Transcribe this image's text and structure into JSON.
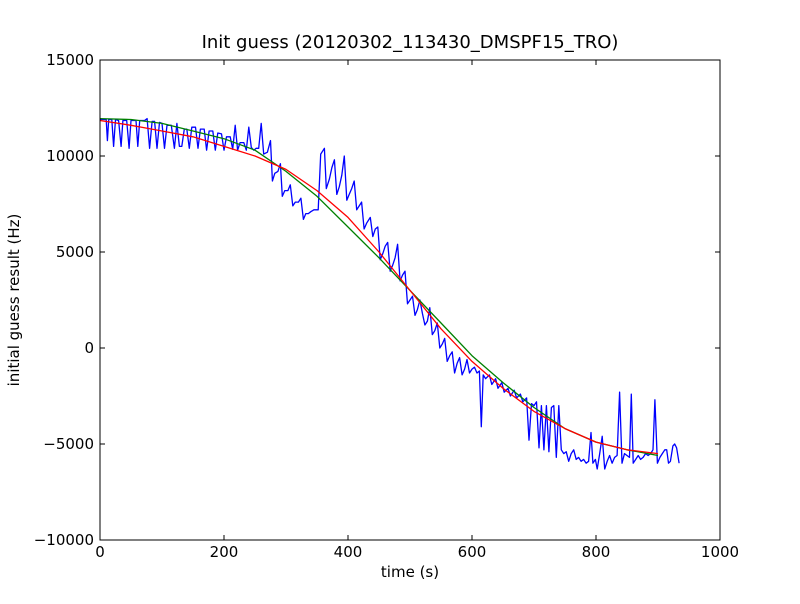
{
  "chart_data": {
    "type": "line",
    "title": "Init guess (20120302_113430_DMSPF15_TRO)",
    "xlabel": "time (s)",
    "ylabel": "initial guess result (Hz)",
    "xlim": [
      0,
      1000
    ],
    "ylim": [
      -10000,
      15000
    ],
    "xticks": [
      0,
      200,
      400,
      600,
      800,
      1000
    ],
    "xtick_labels": [
      "0",
      "200",
      "400",
      "600",
      "800",
      "1000"
    ],
    "yticks": [
      -10000,
      -5000,
      0,
      5000,
      10000,
      15000
    ],
    "ytick_labels": [
      "−10000",
      "−5000",
      "0",
      "5000",
      "10000",
      "15000"
    ],
    "grid": false,
    "legend": "none",
    "series": [
      {
        "color": "#0000ff",
        "points": [
          [
            0,
            11900
          ],
          [
            7,
            11900
          ],
          [
            10,
            11900
          ],
          [
            12,
            10800
          ],
          [
            14,
            11900
          ],
          [
            19,
            11900
          ],
          [
            22,
            10500
          ],
          [
            25,
            11900
          ],
          [
            30,
            11850
          ],
          [
            34,
            10500
          ],
          [
            37,
            11850
          ],
          [
            43,
            11850
          ],
          [
            47,
            10400
          ],
          [
            50,
            11850
          ],
          [
            58,
            11850
          ],
          [
            61,
            10500
          ],
          [
            64,
            11850
          ],
          [
            72,
            11850
          ],
          [
            76,
            11950
          ],
          [
            80,
            10400
          ],
          [
            84,
            11800
          ],
          [
            88,
            11800
          ],
          [
            92,
            10400
          ],
          [
            96,
            11750
          ],
          [
            100,
            11700
          ],
          [
            104,
            10400
          ],
          [
            108,
            11600
          ],
          [
            115,
            11600
          ],
          [
            120,
            10400
          ],
          [
            124,
            11700
          ],
          [
            128,
            10500
          ],
          [
            132,
            10500
          ],
          [
            136,
            11400
          ],
          [
            140,
            11400
          ],
          [
            144,
            10400
          ],
          [
            148,
            11500
          ],
          [
            154,
            11500
          ],
          [
            158,
            10400
          ],
          [
            162,
            11400
          ],
          [
            168,
            11400
          ],
          [
            172,
            10300
          ],
          [
            176,
            11300
          ],
          [
            182,
            11300
          ],
          [
            186,
            10300
          ],
          [
            190,
            11200
          ],
          [
            196,
            11150
          ],
          [
            200,
            10300
          ],
          [
            204,
            11000
          ],
          [
            210,
            11000
          ],
          [
            214,
            10350
          ],
          [
            218,
            11600
          ],
          [
            222,
            10300
          ],
          [
            226,
            10700
          ],
          [
            232,
            10700
          ],
          [
            236,
            10300
          ],
          [
            240,
            11500
          ],
          [
            244,
            10450
          ],
          [
            248,
            10300
          ],
          [
            252,
            10400
          ],
          [
            256,
            10400
          ],
          [
            260,
            11700
          ],
          [
            264,
            10100
          ],
          [
            270,
            10200
          ],
          [
            275,
            10800
          ],
          [
            278,
            8700
          ],
          [
            282,
            9100
          ],
          [
            287,
            9200
          ],
          [
            291,
            9600
          ],
          [
            294,
            7900
          ],
          [
            298,
            8200
          ],
          [
            303,
            8200
          ],
          [
            307,
            8500
          ],
          [
            311,
            7400
          ],
          [
            315,
            7600
          ],
          [
            320,
            7600
          ],
          [
            324,
            7800
          ],
          [
            328,
            6700
          ],
          [
            332,
            7000
          ],
          [
            336,
            7000
          ],
          [
            340,
            7100
          ],
          [
            345,
            7200
          ],
          [
            352,
            7200
          ],
          [
            356,
            10100
          ],
          [
            362,
            10400
          ],
          [
            365,
            8300
          ],
          [
            370,
            8800
          ],
          [
            374,
            9400
          ],
          [
            378,
            9800
          ],
          [
            382,
            8000
          ],
          [
            386,
            8400
          ],
          [
            390,
            9000
          ],
          [
            394,
            10000
          ],
          [
            398,
            7700
          ],
          [
            402,
            8000
          ],
          [
            406,
            8300
          ],
          [
            410,
            8700
          ],
          [
            414,
            7200
          ],
          [
            418,
            7400
          ],
          [
            422,
            7600
          ],
          [
            426,
            6200
          ],
          [
            430,
            6500
          ],
          [
            436,
            6800
          ],
          [
            440,
            5800
          ],
          [
            444,
            6200
          ],
          [
            448,
            6300
          ],
          [
            452,
            4600
          ],
          [
            456,
            4900
          ],
          [
            460,
            5300
          ],
          [
            464,
            5500
          ],
          [
            468,
            4000
          ],
          [
            472,
            4300
          ],
          [
            476,
            4700
          ],
          [
            480,
            5400
          ],
          [
            484,
            3500
          ],
          [
            488,
            3800
          ],
          [
            492,
            4000
          ],
          [
            496,
            2300
          ],
          [
            500,
            2500
          ],
          [
            504,
            2700
          ],
          [
            508,
            1700
          ],
          [
            512,
            2000
          ],
          [
            516,
            2500
          ],
          [
            520,
            1800
          ],
          [
            524,
            1200
          ],
          [
            528,
            1400
          ],
          [
            532,
            2100
          ],
          [
            536,
            700
          ],
          [
            540,
            900
          ],
          [
            544,
            1300
          ],
          [
            548,
            0
          ],
          [
            552,
            200
          ],
          [
            556,
            500
          ],
          [
            560,
            -700
          ],
          [
            564,
            -400
          ],
          [
            568,
            -200
          ],
          [
            572,
            -1300
          ],
          [
            576,
            -800
          ],
          [
            580,
            -500
          ],
          [
            584,
            -1400
          ],
          [
            588,
            -1100
          ],
          [
            592,
            -600
          ],
          [
            596,
            -1300
          ],
          [
            600,
            -1100
          ],
          [
            604,
            -1000
          ],
          [
            608,
            -1300
          ],
          [
            612,
            -1200
          ],
          [
            615,
            -4100
          ],
          [
            618,
            -1400
          ],
          [
            622,
            -1600
          ],
          [
            628,
            -1400
          ],
          [
            632,
            -1900
          ],
          [
            638,
            -1600
          ],
          [
            642,
            -2100
          ],
          [
            648,
            -1800
          ],
          [
            652,
            -2300
          ],
          [
            658,
            -2100
          ],
          [
            662,
            -2500
          ],
          [
            668,
            -2200
          ],
          [
            672,
            -2600
          ],
          [
            678,
            -2400
          ],
          [
            682,
            -2800
          ],
          [
            688,
            -2600
          ],
          [
            692,
            -4800
          ],
          [
            696,
            -2900
          ],
          [
            700,
            -3000
          ],
          [
            704,
            -2800
          ],
          [
            708,
            -5200
          ],
          [
            712,
            -3000
          ],
          [
            716,
            -5300
          ],
          [
            720,
            -3000
          ],
          [
            724,
            -5400
          ],
          [
            728,
            -3100
          ],
          [
            732,
            -3000
          ],
          [
            736,
            -5700
          ],
          [
            740,
            -3000
          ],
          [
            744,
            -5300
          ],
          [
            748,
            -5500
          ],
          [
            752,
            -5400
          ],
          [
            756,
            -5900
          ],
          [
            760,
            -5500
          ],
          [
            764,
            -5300
          ],
          [
            768,
            -5800
          ],
          [
            772,
            -5700
          ],
          [
            776,
            -5900
          ],
          [
            780,
            -5800
          ],
          [
            784,
            -6000
          ],
          [
            788,
            -5900
          ],
          [
            792,
            -4400
          ],
          [
            795,
            -6000
          ],
          [
            799,
            -5800
          ],
          [
            802,
            -6300
          ],
          [
            806,
            -5500
          ],
          [
            810,
            -4600
          ],
          [
            814,
            -6300
          ],
          [
            818,
            -5900
          ],
          [
            822,
            -5600
          ],
          [
            826,
            -6000
          ],
          [
            830,
            -5700
          ],
          [
            834,
            -5600
          ],
          [
            838,
            -2300
          ],
          [
            842,
            -6000
          ],
          [
            846,
            -5500
          ],
          [
            850,
            -5600
          ],
          [
            854,
            -5700
          ],
          [
            857,
            -2400
          ],
          [
            860,
            -6000
          ],
          [
            864,
            -5800
          ],
          [
            868,
            -5600
          ],
          [
            872,
            -5800
          ],
          [
            876,
            -5700
          ],
          [
            880,
            -5500
          ],
          [
            884,
            -5600
          ],
          [
            888,
            -5500
          ],
          [
            892,
            -5300
          ],
          [
            895,
            -2700
          ],
          [
            899,
            -6000
          ],
          [
            903,
            -5700
          ],
          [
            907,
            -5500
          ],
          [
            911,
            -5300
          ],
          [
            914,
            -5300
          ],
          [
            917,
            -6000
          ],
          [
            920,
            -5900
          ],
          [
            924,
            -5100
          ],
          [
            927,
            -5000
          ],
          [
            930,
            -5200
          ],
          [
            934,
            -6000
          ]
        ]
      },
      {
        "color": "#008000",
        "points": [
          [
            0,
            11950
          ],
          [
            50,
            11900
          ],
          [
            100,
            11700
          ],
          [
            150,
            11300
          ],
          [
            200,
            10900
          ],
          [
            250,
            10300
          ],
          [
            300,
            9200
          ],
          [
            350,
            7900
          ],
          [
            400,
            6300
          ],
          [
            450,
            4700
          ],
          [
            500,
            3000
          ],
          [
            550,
            1300
          ],
          [
            600,
            -400
          ],
          [
            650,
            -1800
          ],
          [
            700,
            -3100
          ],
          [
            750,
            -4200
          ],
          [
            800,
            -4900
          ],
          [
            850,
            -5300
          ],
          [
            900,
            -5600
          ]
        ]
      },
      {
        "color": "#ff0000",
        "points": [
          [
            0,
            11850
          ],
          [
            50,
            11600
          ],
          [
            100,
            11300
          ],
          [
            150,
            11000
          ],
          [
            200,
            10500
          ],
          [
            250,
            10000
          ],
          [
            300,
            9300
          ],
          [
            350,
            8200
          ],
          [
            400,
            6800
          ],
          [
            450,
            5000
          ],
          [
            500,
            3000
          ],
          [
            550,
            1000
          ],
          [
            600,
            -700
          ],
          [
            650,
            -2100
          ],
          [
            700,
            -3300
          ],
          [
            750,
            -4200
          ],
          [
            800,
            -4900
          ],
          [
            850,
            -5300
          ],
          [
            900,
            -5500
          ]
        ]
      }
    ]
  }
}
